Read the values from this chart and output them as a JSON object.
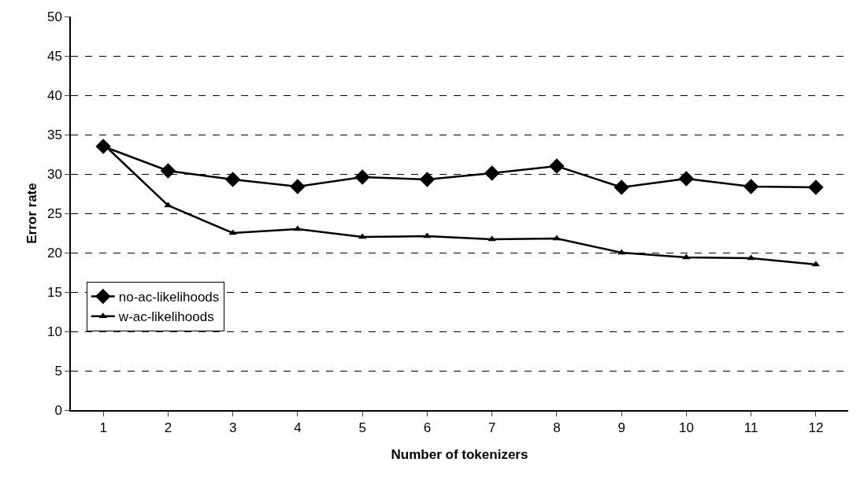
{
  "chart_data": {
    "type": "line",
    "xlabel": "Number of tokenizers",
    "ylabel": "Error rate",
    "x": [
      1,
      2,
      3,
      4,
      5,
      6,
      7,
      8,
      9,
      10,
      11,
      12
    ],
    "xlim": [
      0.5,
      12.5
    ],
    "xticks": [
      1,
      2,
      3,
      4,
      5,
      6,
      7,
      8,
      9,
      10,
      11,
      12
    ],
    "series": [
      {
        "name": "no-ac-likelihoods",
        "color": "#000000",
        "marker": "diamond",
        "values": [
          33.5,
          30.4,
          29.3,
          28.4,
          29.6,
          29.3,
          30.1,
          31.0,
          28.3,
          29.4,
          28.4,
          28.3
        ]
      },
      {
        "name": "w-ac-likelihoods",
        "color": "#000000",
        "marker": "triangle",
        "values": [
          33.8,
          26.0,
          22.5,
          23.0,
          22.0,
          22.1,
          21.7,
          21.8,
          20.0,
          19.4,
          19.3,
          18.5
        ]
      }
    ],
    "ylim": [
      0,
      50
    ],
    "yticks": [
      0,
      5,
      10,
      15,
      20,
      25,
      30,
      35,
      40,
      45,
      50
    ],
    "grid": "y",
    "legend": "bottom left",
    "line_style": "solid"
  }
}
